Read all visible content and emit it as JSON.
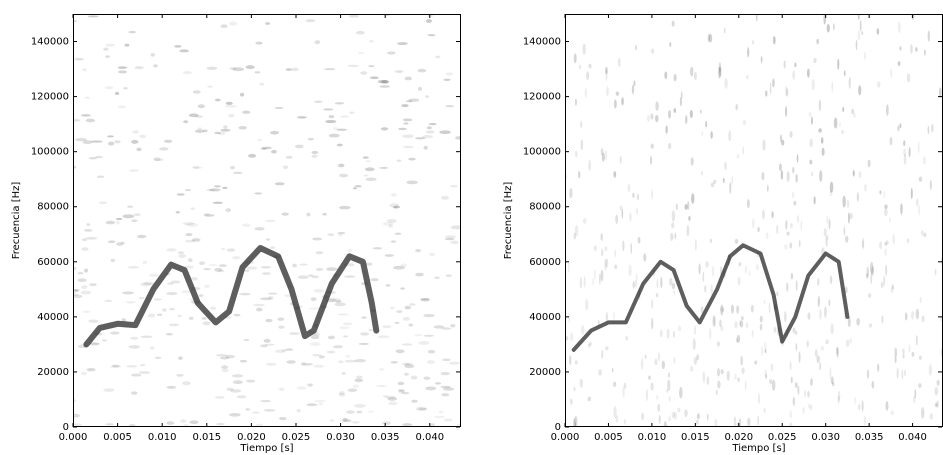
{
  "chart_data": [
    {
      "type": "spectrogram",
      "xlabel": "Tiempo [s]",
      "ylabel": "Frecuencia [Hz]",
      "xlim": [
        0,
        0.0435
      ],
      "ylim": [
        0,
        150000
      ],
      "xticks": [
        {
          "value": 0,
          "label": "0.000"
        },
        {
          "value": 0.005,
          "label": "0.005"
        },
        {
          "value": 0.01,
          "label": "0.010"
        },
        {
          "value": 0.015,
          "label": "0.015"
        },
        {
          "value": 0.02,
          "label": "0.020"
        },
        {
          "value": 0.025,
          "label": "0.025"
        },
        {
          "value": 0.03,
          "label": "0.030"
        },
        {
          "value": 0.035,
          "label": "0.035"
        },
        {
          "value": 0.04,
          "label": "0.040"
        }
      ],
      "yticks": [
        0,
        20000,
        40000,
        60000,
        80000,
        100000,
        120000,
        140000
      ],
      "color": "#1a1a1a",
      "x": [
        0.0015,
        0.003,
        0.005,
        0.007,
        0.009,
        0.011,
        0.0125,
        0.014,
        0.016,
        0.0175,
        0.019,
        0.021,
        0.023,
        0.0245,
        0.026,
        0.027,
        0.029,
        0.031,
        0.0325,
        0.0335,
        0.034
      ],
      "values": [
        30000,
        36000,
        37500,
        37000,
        50000,
        59000,
        57000,
        45000,
        38000,
        42000,
        58000,
        65000,
        62000,
        50000,
        33000,
        35000,
        52000,
        62000,
        60000,
        45000,
        35000
      ]
    },
    {
      "type": "spectrogram",
      "xlabel": "Tiempo [s]",
      "ylabel": "Frecuencia [Hz]",
      "xlim": [
        0,
        0.0435
      ],
      "ylim": [
        0,
        150000
      ],
      "xticks": [
        {
          "value": 0,
          "label": "0.000"
        },
        {
          "value": 0.005,
          "label": "0.005"
        },
        {
          "value": 0.01,
          "label": "0.010"
        },
        {
          "value": 0.015,
          "label": "0.015"
        },
        {
          "value": 0.02,
          "label": "0.020"
        },
        {
          "value": 0.025,
          "label": "0.025"
        },
        {
          "value": 0.03,
          "label": "0.030"
        },
        {
          "value": 0.035,
          "label": "0.035"
        },
        {
          "value": 0.04,
          "label": "0.040"
        }
      ],
      "yticks": [
        0,
        20000,
        40000,
        60000,
        80000,
        100000,
        120000,
        140000
      ],
      "color": "#1a1a1a",
      "x": [
        0.001,
        0.003,
        0.005,
        0.007,
        0.009,
        0.011,
        0.0125,
        0.014,
        0.0155,
        0.0175,
        0.019,
        0.0205,
        0.0225,
        0.024,
        0.025,
        0.0265,
        0.028,
        0.03,
        0.0315,
        0.0325
      ],
      "values": [
        28000,
        35000,
        38000,
        38000,
        52000,
        60000,
        57000,
        44000,
        38000,
        50000,
        62000,
        66000,
        63000,
        48000,
        31000,
        40000,
        55000,
        63000,
        60000,
        40000
      ]
    }
  ]
}
